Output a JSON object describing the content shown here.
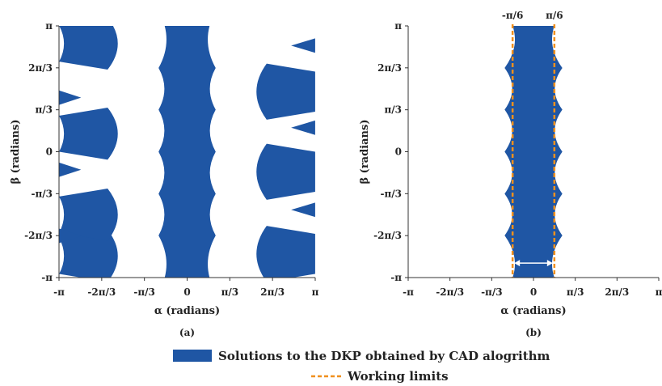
{
  "chart_data": [
    {
      "panel_label": "(a)",
      "type": "heatmap",
      "xlabel": "α (radians)",
      "ylabel": "β (radians)",
      "xlim": [
        -3.1416,
        3.1416
      ],
      "ylim": [
        -3.1416,
        3.1416
      ],
      "xtick_labels": [
        "-π",
        "-2π/3",
        "-π/3",
        "0",
        "π/3",
        "2π/3",
        "π"
      ],
      "ytick_labels": [
        "-π",
        "-2π/3",
        "-π/3",
        "0",
        "π/3",
        "2π/3",
        "π"
      ],
      "ticks": [
        -3.1416,
        -2.0944,
        -1.0472,
        0,
        1.0472,
        2.0944,
        3.1416
      ],
      "grid": false,
      "series_color": "#1f56a4",
      "regions": {
        "central_band": {
          "x_bounds": [
            -0.55,
            0.55
          ],
          "edge_bulge": 0.15,
          "cusp_y": [
            -2.09,
            -1.05,
            0,
            1.05,
            2.09
          ]
        },
        "lobe_centers_y": [
          -3.14,
          -1.57,
          0,
          1.57,
          3.14
        ],
        "left_lobes_x": [
          -3.14,
          -1.7
        ],
        "right_lobes_x": [
          1.5,
          3.14
        ]
      }
    },
    {
      "panel_label": "(b)",
      "type": "heatmap",
      "xlabel": "α (radians)",
      "ylabel": "β (radians)",
      "xlim": [
        -3.1416,
        3.1416
      ],
      "ylim": [
        -3.1416,
        3.1416
      ],
      "xtick_labels": [
        "-π",
        "-2π/3",
        "-π/3",
        "0",
        "π/3",
        "2π/3",
        "π"
      ],
      "ytick_labels": [
        "-π",
        "-2π/3",
        "-π/3",
        "0",
        "π/3",
        "2π/3",
        "π"
      ],
      "ticks": [
        -3.1416,
        -2.0944,
        -1.0472,
        0,
        1.0472,
        2.0944,
        3.1416
      ],
      "grid": false,
      "series_color": "#1f56a4",
      "working_limits": {
        "values": [
          -0.5236,
          0.5236
        ],
        "labels": [
          "-π/6",
          "π/6"
        ],
        "color": "#f0901e",
        "style": "dashed"
      },
      "regions": {
        "central_band": {
          "x_bounds": [
            -0.5236,
            0.5236
          ],
          "edge_bulge": 0.2,
          "cusp_y": [
            -2.09,
            -1.05,
            0,
            1.05,
            2.09
          ]
        }
      }
    }
  ],
  "legend": {
    "items": [
      {
        "label": "Solutions to the DKP obtained by CAD alogrithm",
        "color": "#1f56a4",
        "kind": "patch"
      },
      {
        "label": "Working limits",
        "color": "#f0901e",
        "kind": "dashed-line"
      }
    ]
  }
}
